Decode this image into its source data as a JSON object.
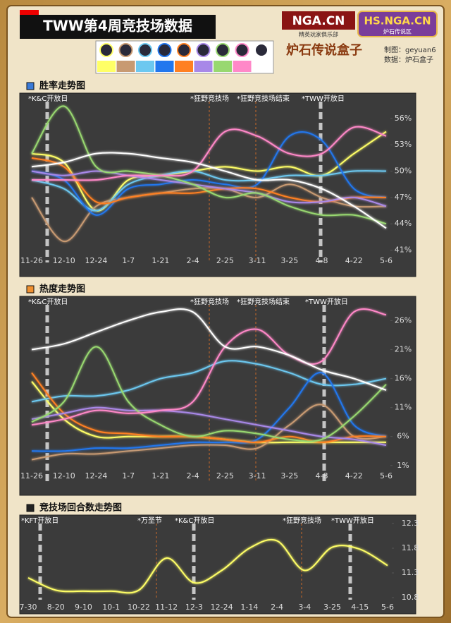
{
  "header": {
    "title": "TWW第4周竞技场数据",
    "logo1": "NGA.CN",
    "logo1_sub": "精英玩家俱乐部",
    "logo2": "HS.NGA.CN",
    "logo2_sub": "炉石传说区",
    "logo3": "炉石传说盒子",
    "credit_author": "制图：geyuan6",
    "credit_source": "数据：炉石盒子"
  },
  "chart_data": [
    {
      "type": "line",
      "title": "胜率走势图",
      "categories": [
        "11-26",
        "12-10",
        "12-24",
        "1-7",
        "1-21",
        "2-4",
        "2-25",
        "3-11",
        "3-25",
        "4-8",
        "4-22",
        "5-6"
      ],
      "ylim": [
        40,
        58
      ],
      "yticks": [
        {
          "value": 41,
          "label": "41%"
        },
        {
          "value": 44,
          "label": "44%"
        },
        {
          "value": 47,
          "label": "47%"
        },
        {
          "value": 50,
          "label": "50%"
        },
        {
          "value": 53,
          "label": "53%"
        },
        {
          "value": 56,
          "label": "56%"
        }
      ],
      "annotations": [
        "*K&C开放日",
        "*狂野竞技场",
        "*狂野竞技场结束",
        "*TWW开放日"
      ],
      "series": [
        {
          "color": "#ffff66",
          "values": [
            52,
            51,
            45.5,
            49,
            49.5,
            50,
            50.5,
            50,
            50.5,
            49.5,
            52,
            54.5
          ]
        },
        {
          "color": "#c89a72",
          "values": [
            47,
            42,
            46,
            47,
            47.5,
            48,
            48,
            47,
            48.5,
            47,
            46,
            46
          ]
        },
        {
          "color": "#6cc8f0",
          "values": [
            49,
            48,
            45.5,
            48.5,
            49.5,
            50,
            49,
            49,
            49.5,
            49.5,
            50,
            50
          ]
        },
        {
          "color": "#2277ee",
          "values": [
            50,
            49,
            45,
            48,
            48.5,
            49,
            48.5,
            48.5,
            54,
            53.5,
            48,
            47
          ]
        },
        {
          "color": "#ff8022",
          "values": [
            51.5,
            50.5,
            46.5,
            47,
            47.5,
            47.5,
            48,
            48,
            47,
            46.5,
            47,
            47
          ]
        },
        {
          "color": "#a888e8",
          "values": [
            50,
            49.5,
            50,
            49.5,
            49,
            48.5,
            48,
            47.5,
            46.5,
            46.5,
            47,
            46
          ]
        },
        {
          "color": "#98d870",
          "values": [
            52,
            57.4,
            50.5,
            50,
            49.5,
            48.5,
            47,
            47.5,
            46,
            45,
            45,
            44
          ]
        },
        {
          "color": "#ff88c8",
          "values": [
            49,
            49,
            49,
            49.5,
            49.5,
            50,
            54.5,
            54,
            52,
            52,
            55,
            54
          ]
        },
        {
          "color": "#ffffff",
          "values": [
            50.5,
            51,
            52,
            52,
            51.5,
            51,
            50,
            49,
            49,
            48,
            46,
            43.5
          ]
        }
      ]
    },
    {
      "type": "line",
      "title": "热度走势图",
      "categories": [
        "11-26",
        "12-10",
        "12-24",
        "1-7",
        "1-21",
        "2-4",
        "2-25",
        "3-11",
        "3-25",
        "4-8",
        "4-22",
        "5-6"
      ],
      "ylim": [
        0,
        28
      ],
      "yticks": [
        {
          "value": 1,
          "label": "1%"
        },
        {
          "value": 6,
          "label": "6%"
        },
        {
          "value": 11,
          "label": "11%"
        },
        {
          "value": 16,
          "label": "16%"
        },
        {
          "value": 21,
          "label": "21%"
        },
        {
          "value": 26,
          "label": "26%"
        }
      ],
      "annotations": [
        "*K&C开放日",
        "*狂野竞技场",
        "*狂野竞技场结束",
        "*TWW开放日"
      ],
      "series": [
        {
          "color": "#ffff66",
          "values": [
            15.5,
            9,
            6,
            6,
            6,
            6,
            5.5,
            5,
            5,
            5,
            5,
            5
          ]
        },
        {
          "color": "#c89a72",
          "values": [
            2,
            3,
            3,
            3.5,
            4,
            4.5,
            4.5,
            4,
            8,
            11.5,
            6,
            6
          ]
        },
        {
          "color": "#6cc8f0",
          "values": [
            12,
            13,
            13,
            14,
            16,
            17,
            19,
            18.5,
            17,
            15,
            15,
            16
          ]
        },
        {
          "color": "#2277ee",
          "values": [
            3.5,
            3.5,
            4,
            4,
            4.5,
            5,
            5,
            5.5,
            11,
            17,
            8,
            6
          ]
        },
        {
          "color": "#ff8022",
          "values": [
            17,
            10,
            7,
            6.5,
            6,
            6,
            5.5,
            5,
            6,
            5,
            6,
            6
          ]
        },
        {
          "color": "#a888e8",
          "values": [
            9,
            10,
            11,
            10.5,
            10.5,
            10,
            9,
            8,
            7,
            6,
            5.5,
            4.5
          ]
        },
        {
          "color": "#98d870",
          "values": [
            8.5,
            12,
            21.5,
            12,
            8,
            6,
            7,
            6.5,
            5.5,
            5.5,
            9.5,
            15
          ]
        },
        {
          "color": "#ff88c8",
          "values": [
            8,
            9,
            10.5,
            10,
            10.5,
            12,
            21.5,
            24.5,
            20,
            19,
            27.5,
            27
          ]
        },
        {
          "color": "#ffffff",
          "values": [
            21,
            22,
            24,
            26,
            27.5,
            27.5,
            21.5,
            21.5,
            20,
            17.5,
            16,
            14
          ]
        }
      ]
    },
    {
      "type": "line",
      "title": "竞技场回合数走势图",
      "categories": [
        "7-30",
        "8-20",
        "9-10",
        "10-1",
        "10-22",
        "11-12",
        "12-3",
        "12-24",
        "1-14",
        "2-4",
        "3-4",
        "3-25",
        "4-15",
        "5-6"
      ],
      "ylim": [
        10.8,
        12.3
      ],
      "yticks": [
        10.8,
        11.3,
        11.8,
        12.3
      ],
      "annotations": [
        "*KFT开放日",
        "*万圣节",
        "*K&C开放日",
        "*狂野竞技场",
        "*TWW开放日"
      ],
      "series": [
        {
          "color": "#ffff66",
          "values": [
            11.2,
            10.95,
            10.93,
            10.93,
            10.95,
            11.6,
            11.1,
            11.35,
            11.8,
            11.95,
            11.35,
            11.82,
            11.78,
            11.45
          ]
        }
      ]
    }
  ]
}
